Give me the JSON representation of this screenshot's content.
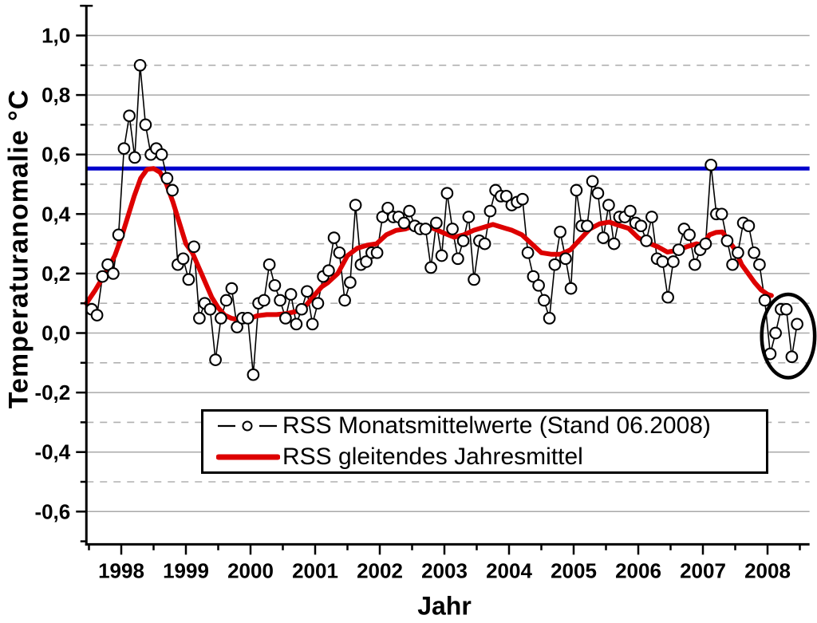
{
  "chart_data": {
    "type": "line",
    "title": "",
    "xlabel": "Jahr",
    "ylabel": "Temperaturanomalie °C",
    "x_range": [
      1997.46,
      2008.65
    ],
    "y_range": [
      -0.71,
      1.1
    ],
    "grid": {
      "solid_at": [
        1.0,
        0.8,
        0.6,
        0.4,
        0.2,
        0.0,
        -0.2,
        -0.4,
        -0.6
      ],
      "dashed_at": [
        0.9,
        0.7,
        0.5,
        0.3,
        0.1,
        -0.1,
        -0.3,
        -0.5
      ]
    },
    "x_major_ticks": [
      1998,
      1999,
      2000,
      2001,
      2002,
      2003,
      2004,
      2005,
      2006,
      2007,
      2008
    ],
    "x_major_tick_labels": [
      "1998",
      "1999",
      "2000",
      "2001",
      "2002",
      "2003",
      "2004",
      "2005",
      "2006",
      "2007",
      "2008"
    ],
    "x_minor_ticks": [
      1997.5,
      1998.5,
      1999.5,
      2000.5,
      2001.5,
      2002.5,
      2003.5,
      2004.5,
      2005.5,
      2006.5,
      2007.5,
      2008.5
    ],
    "y_major_ticks": [
      1.0,
      0.8,
      0.6,
      0.4,
      0.2,
      0.0,
      -0.2,
      -0.4,
      -0.6
    ],
    "y_major_tick_labels": [
      "1,0",
      "0,8",
      "0,6",
      "0,4",
      "0,2",
      "0,0",
      "-0,2",
      "-0,4",
      "-0,6"
    ],
    "y_minor_ticks": [
      1.1,
      0.9,
      0.7,
      0.5,
      0.3,
      0.1,
      -0.1,
      -0.3,
      -0.5,
      -0.7
    ],
    "reference_line": {
      "value": 0.553,
      "color": "#0000cc"
    },
    "legend_position": "bottom-center-box",
    "series": [
      {
        "name": "RSS Monatsmittelwerte (Stand 06.2008)",
        "type": "line+marker",
        "marker": "open-circle",
        "color": "#000000",
        "start_year_month": "1997-07",
        "end_year_month": "2008-06",
        "cadence": "monthly",
        "values": [
          0.08,
          0.06,
          0.19,
          0.23,
          0.2,
          0.33,
          0.62,
          0.73,
          0.59,
          0.9,
          0.7,
          0.6,
          0.62,
          0.6,
          0.52,
          0.48,
          0.23,
          0.25,
          0.18,
          0.29,
          0.05,
          0.1,
          0.08,
          -0.09,
          0.05,
          0.11,
          0.15,
          0.02,
          0.05,
          0.05,
          -0.14,
          0.1,
          0.11,
          0.23,
          0.16,
          0.11,
          0.05,
          0.13,
          0.03,
          0.08,
          0.14,
          0.03,
          0.1,
          0.19,
          0.21,
          0.32,
          0.27,
          0.11,
          0.17,
          0.43,
          0.23,
          0.24,
          0.27,
          0.27,
          0.39,
          0.42,
          0.39,
          0.39,
          0.37,
          0.41,
          0.36,
          0.35,
          0.35,
          0.22,
          0.37,
          0.26,
          0.47,
          0.35,
          0.25,
          0.31,
          0.39,
          0.18,
          0.31,
          0.3,
          0.41,
          0.48,
          0.46,
          0.46,
          0.43,
          0.44,
          0.45,
          0.27,
          0.19,
          0.16,
          0.11,
          0.05,
          0.23,
          0.34,
          0.25,
          0.15,
          0.48,
          0.36,
          0.36,
          0.51,
          0.47,
          0.32,
          0.43,
          0.3,
          0.39,
          0.39,
          0.41,
          0.37,
          0.36,
          0.31,
          0.39,
          0.25,
          0.24,
          0.12,
          0.24,
          0.28,
          0.35,
          0.33,
          0.23,
          0.28,
          0.3,
          0.565,
          0.4,
          0.4,
          0.31,
          0.23,
          0.27,
          0.37,
          0.36,
          0.27,
          0.23,
          0.11,
          -0.07,
          0.0,
          0.08,
          0.08,
          -0.08,
          0.03
        ]
      },
      {
        "name": "RSS gleitendes Jahresmittel",
        "type": "line",
        "color": "#dd0000",
        "width": 6,
        "points": [
          [
            1997.46,
            0.1
          ],
          [
            1997.6,
            0.145
          ],
          [
            1997.75,
            0.2
          ],
          [
            1997.9,
            0.26
          ],
          [
            1998.0,
            0.32
          ],
          [
            1998.1,
            0.39
          ],
          [
            1998.2,
            0.46
          ],
          [
            1998.3,
            0.52
          ],
          [
            1998.4,
            0.55
          ],
          [
            1998.5,
            0.553
          ],
          [
            1998.6,
            0.54
          ],
          [
            1998.7,
            0.5
          ],
          [
            1998.8,
            0.44
          ],
          [
            1998.9,
            0.37
          ],
          [
            1999.0,
            0.3
          ],
          [
            1999.1,
            0.27
          ],
          [
            1999.2,
            0.22
          ],
          [
            1999.3,
            0.17
          ],
          [
            1999.4,
            0.12
          ],
          [
            1999.5,
            0.085
          ],
          [
            1999.6,
            0.06
          ],
          [
            1999.7,
            0.05
          ],
          [
            1999.8,
            0.045
          ],
          [
            1999.9,
            0.042
          ],
          [
            2000.0,
            0.05
          ],
          [
            2000.1,
            0.058
          ],
          [
            2000.25,
            0.062
          ],
          [
            2000.4,
            0.062
          ],
          [
            2000.55,
            0.065
          ],
          [
            2000.7,
            0.072
          ],
          [
            2000.85,
            0.09
          ],
          [
            2001.0,
            0.13
          ],
          [
            2001.1,
            0.155
          ],
          [
            2001.2,
            0.17
          ],
          [
            2001.35,
            0.2
          ],
          [
            2001.5,
            0.26
          ],
          [
            2001.65,
            0.285
          ],
          [
            2001.8,
            0.295
          ],
          [
            2001.95,
            0.3
          ],
          [
            2002.1,
            0.33
          ],
          [
            2002.25,
            0.345
          ],
          [
            2002.4,
            0.35
          ],
          [
            2002.55,
            0.362
          ],
          [
            2002.7,
            0.36
          ],
          [
            2002.85,
            0.35
          ],
          [
            2003.0,
            0.335
          ],
          [
            2003.15,
            0.322
          ],
          [
            2003.3,
            0.33
          ],
          [
            2003.45,
            0.345
          ],
          [
            2003.6,
            0.355
          ],
          [
            2003.75,
            0.365
          ],
          [
            2003.9,
            0.355
          ],
          [
            2004.05,
            0.345
          ],
          [
            2004.2,
            0.33
          ],
          [
            2004.35,
            0.3
          ],
          [
            2004.5,
            0.27
          ],
          [
            2004.65,
            0.265
          ],
          [
            2004.8,
            0.265
          ],
          [
            2004.95,
            0.28
          ],
          [
            2005.1,
            0.315
          ],
          [
            2005.25,
            0.35
          ],
          [
            2005.4,
            0.367
          ],
          [
            2005.55,
            0.373
          ],
          [
            2005.7,
            0.362
          ],
          [
            2005.85,
            0.352
          ],
          [
            2006.0,
            0.32
          ],
          [
            2006.15,
            0.303
          ],
          [
            2006.3,
            0.29
          ],
          [
            2006.45,
            0.272
          ],
          [
            2006.6,
            0.278
          ],
          [
            2006.75,
            0.29
          ],
          [
            2006.9,
            0.3
          ],
          [
            2007.0,
            0.295
          ],
          [
            2007.1,
            0.33
          ],
          [
            2007.2,
            0.338
          ],
          [
            2007.3,
            0.34
          ],
          [
            2007.4,
            0.31
          ],
          [
            2007.5,
            0.28
          ],
          [
            2007.6,
            0.23
          ],
          [
            2007.7,
            0.2
          ],
          [
            2007.8,
            0.17
          ],
          [
            2007.9,
            0.145
          ],
          [
            2008.0,
            0.13
          ],
          [
            2008.06,
            0.126
          ]
        ]
      }
    ],
    "annotation": {
      "shape": "ellipse",
      "meaning": "highlight of the 2008 monthly values",
      "x_center": 2008.32,
      "y_center": -0.01,
      "x_radius": 0.41,
      "y_radius": 0.14,
      "color": "#000000"
    }
  }
}
